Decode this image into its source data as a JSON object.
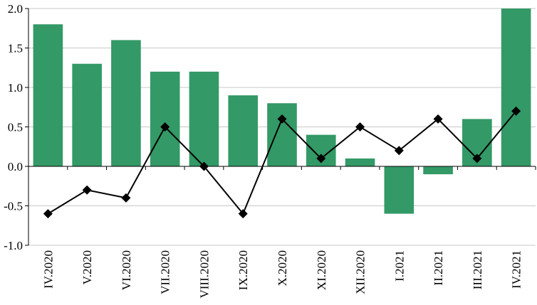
{
  "chart_data": {
    "type": "bar",
    "categories": [
      "IV.2020",
      "V.2020",
      "VI.2020",
      "VII.2020",
      "VIII.2020",
      "IX.2020",
      "X.2020",
      "XI.2020",
      "XII.2020",
      "I.2021",
      "II.2021",
      "III.2021",
      "IV.2021"
    ],
    "series": [
      {
        "type": "bar",
        "color": "#339966",
        "values": [
          1.8,
          1.3,
          1.6,
          1.2,
          1.2,
          0.9,
          0.8,
          0.4,
          0.1,
          -0.6,
          -0.1,
          0.6,
          2.0
        ]
      },
      {
        "type": "line",
        "color": "#000000",
        "marker": "diamond",
        "values": [
          -0.6,
          -0.3,
          -0.4,
          0.5,
          0.0,
          -0.6,
          0.6,
          0.1,
          0.5,
          0.2,
          0.6,
          0.1,
          0.7
        ]
      }
    ],
    "yticks": [
      "2.0",
      "1.5",
      "1.0",
      "0.5",
      "0.0",
      "-0.5",
      "-1.0"
    ],
    "ylim": [
      -1.0,
      2.0
    ],
    "grid": true,
    "legend": "none"
  }
}
